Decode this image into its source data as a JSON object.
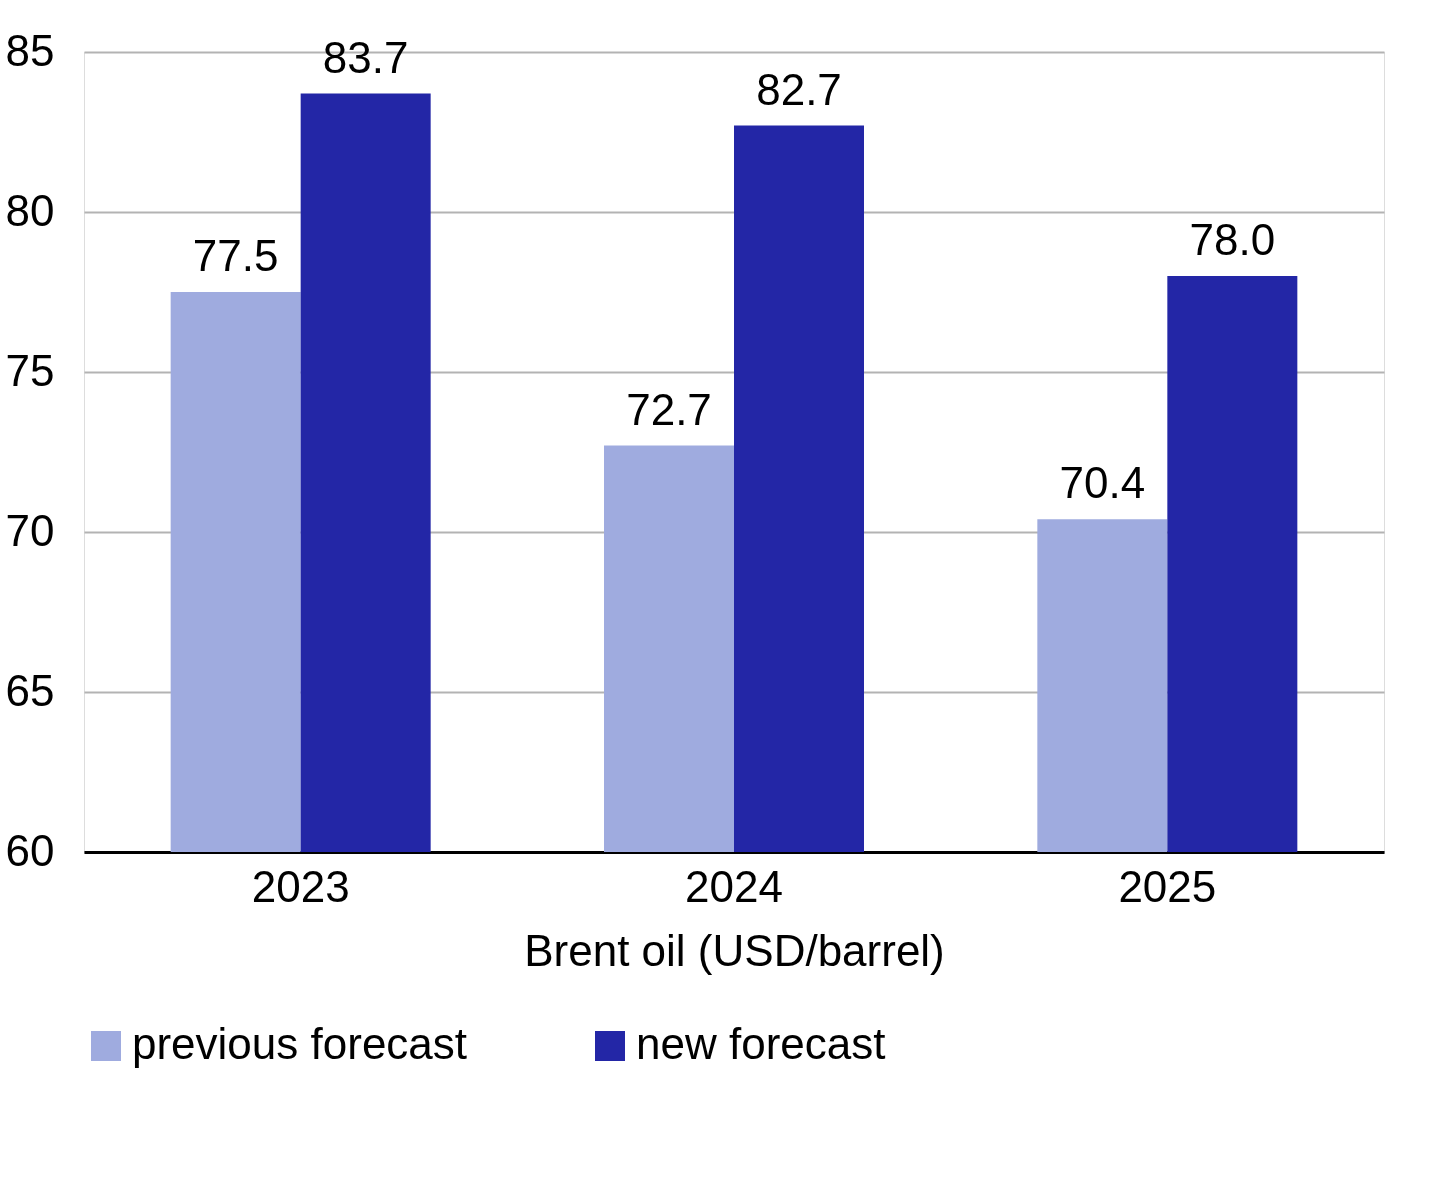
{
  "chart_data": {
    "type": "bar",
    "xlabel": "Brent oil (USD/barrel)",
    "categories": [
      "2023",
      "2024",
      "2025"
    ],
    "series": [
      {
        "name": "previous forecast",
        "color": "#9fabdf",
        "values": [
          77.5,
          72.7,
          70.4
        ],
        "value_labels": [
          "77.5",
          "72.7",
          "70.4"
        ]
      },
      {
        "name": "new forecast",
        "color": "#2326a6",
        "values": [
          83.7,
          82.7,
          78.0
        ],
        "value_labels": [
          "83.7",
          "82.7",
          "78.0"
        ]
      }
    ],
    "ylim": [
      60,
      85
    ],
    "yticks": [
      60,
      65,
      70,
      75,
      80,
      85
    ],
    "grid": "y",
    "legend": "bottom",
    "data_labels": true
  }
}
